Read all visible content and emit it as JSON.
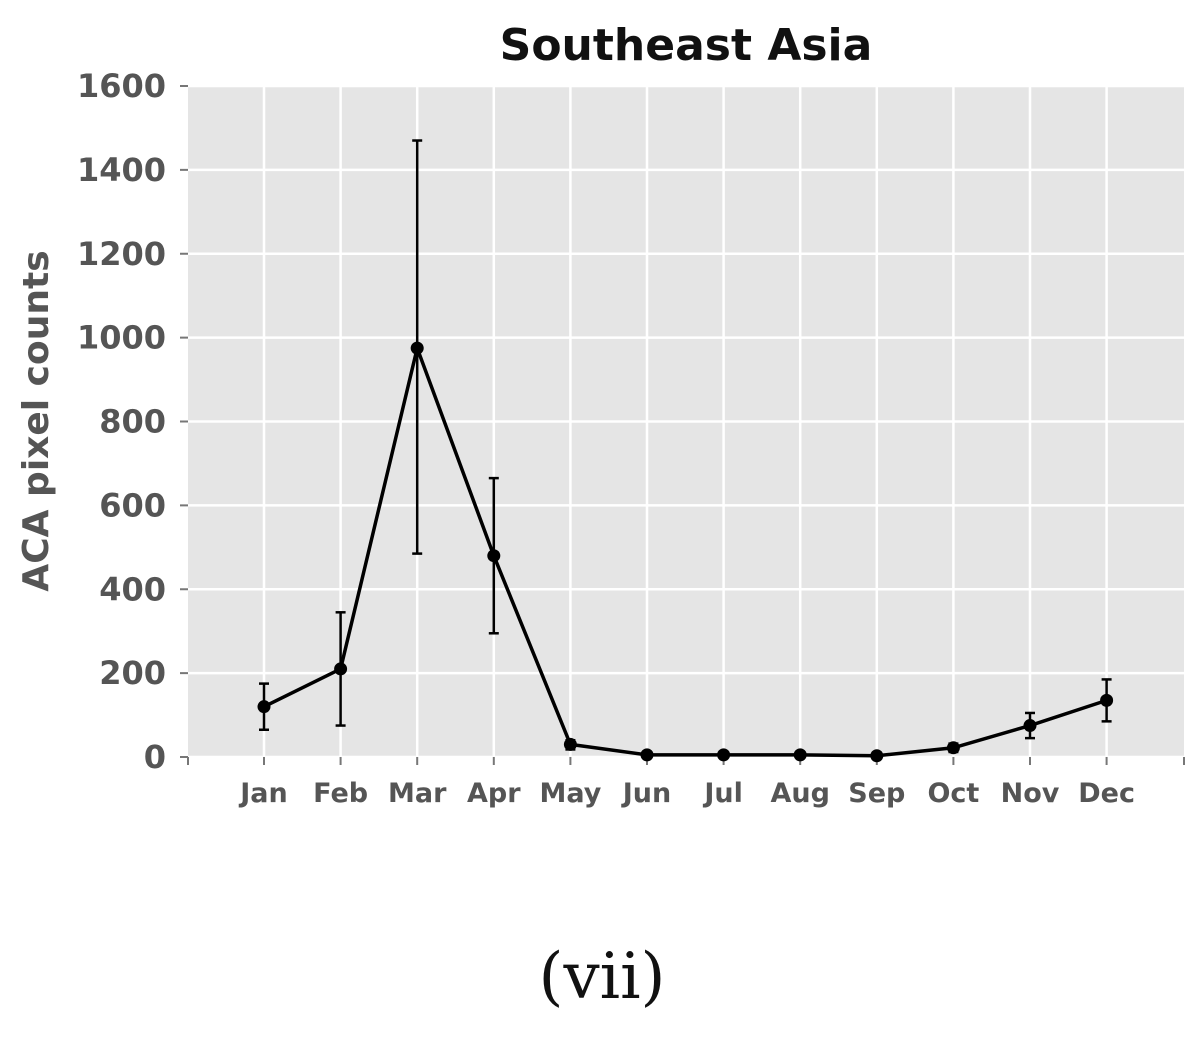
{
  "chart_data": {
    "type": "line",
    "title": "Southeast Asia",
    "xlabel": "",
    "ylabel": "ACA pixel counts",
    "categories": [
      "Jan",
      "Feb",
      "Mar",
      "Apr",
      "May",
      "Jun",
      "Jul",
      "Aug",
      "Sep",
      "Oct",
      "Nov",
      "Dec"
    ],
    "series": [
      {
        "values": [
          120,
          210,
          975,
          480,
          30,
          5,
          5,
          5,
          3,
          22,
          75,
          135
        ],
        "error_low": [
          65,
          75,
          485,
          295,
          18,
          3,
          3,
          3,
          2,
          12,
          45,
          85
        ],
        "error_high": [
          175,
          345,
          1470,
          665,
          40,
          7,
          7,
          7,
          4,
          32,
          105,
          185
        ]
      }
    ],
    "ylim": [
      0,
      1600
    ],
    "yticks": [
      0,
      200,
      400,
      600,
      800,
      1000,
      1200,
      1400,
      1600
    ],
    "grid": true,
    "colors": {
      "background": "#e5e5e5",
      "grid": "#ffffff",
      "line": "#000000",
      "text": "#555555"
    }
  },
  "caption": "(vii)"
}
